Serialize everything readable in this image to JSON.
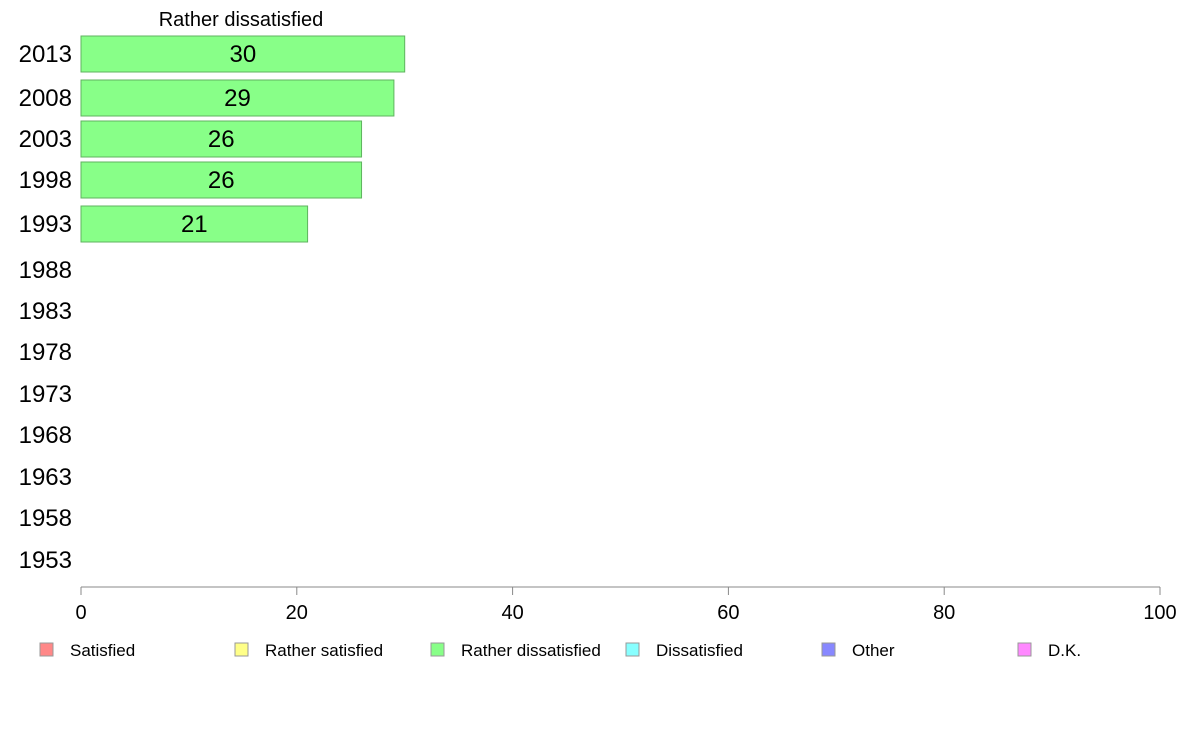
{
  "chart_data": {
    "type": "bar",
    "orientation": "horizontal",
    "title": "Rather dissatisfied",
    "categories": [
      "2013",
      "2008",
      "2003",
      "1998",
      "1993",
      "1988",
      "1983",
      "1978",
      "1973",
      "1968",
      "1963",
      "1958",
      "1953"
    ],
    "series": [
      {
        "name": "Rather dissatisfied",
        "color": "#88ff88",
        "values": [
          30,
          29,
          26,
          26,
          21,
          null,
          null,
          null,
          null,
          null,
          null,
          null,
          null
        ]
      }
    ],
    "xlim": [
      0,
      100
    ],
    "xticks": [
      0,
      20,
      40,
      60,
      80,
      100
    ],
    "xlabel": "",
    "ylabel": "",
    "grid": false,
    "legend": {
      "placement": "bottom",
      "entries": [
        {
          "label": "Satisfied",
          "color": "#ff8888"
        },
        {
          "label": "Rather satisfied",
          "color": "#ffff88"
        },
        {
          "label": "Rather dissatisfied",
          "color": "#88ff88"
        },
        {
          "label": "Dissatisfied",
          "color": "#88ffff"
        },
        {
          "label": "Other",
          "color": "#8888ff"
        },
        {
          "label": "D.K.",
          "color": "#ff88ff"
        }
      ]
    }
  }
}
